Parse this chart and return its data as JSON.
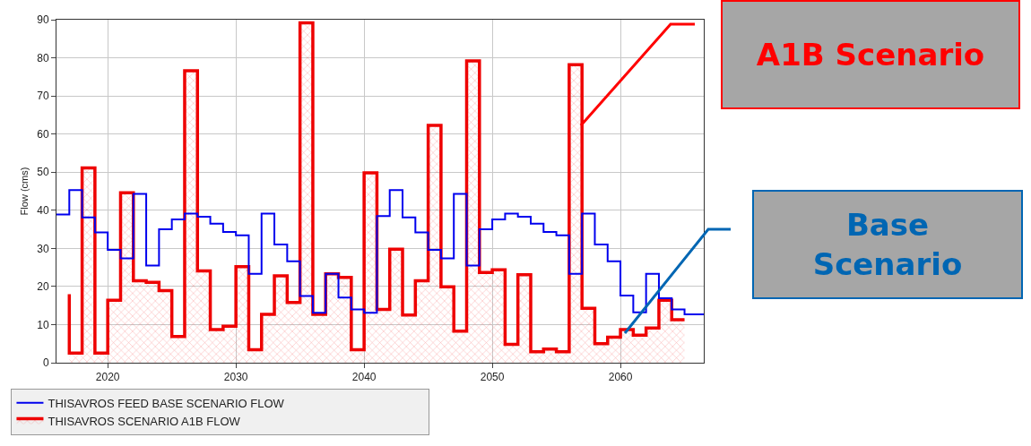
{
  "chart_data": {
    "type": "step",
    "ylabel": "Flow (cms)",
    "xlim": [
      2016,
      2066.5
    ],
    "xticks": [
      2020,
      2030,
      2040,
      2050,
      2060
    ],
    "ylim": [
      0,
      90
    ],
    "yticks": [
      0,
      10,
      20,
      30,
      40,
      50,
      60,
      70,
      80,
      90
    ],
    "grid": true,
    "legend": "bottom",
    "marker": "none",
    "line_style": "solid",
    "series": [
      {
        "name": "THISAVROS FEED BASE SCENARIO FLOW",
        "color": "#0000ee",
        "x": [
          2016,
          2017,
          2018,
          2019,
          2020,
          2021,
          2022,
          2023,
          2024,
          2025,
          2026,
          2027,
          2028,
          2029,
          2030,
          2031,
          2032,
          2033,
          2034,
          2035,
          2036,
          2037,
          2038,
          2039,
          2040,
          2041,
          2042,
          2043,
          2044,
          2045,
          2046,
          2047,
          2048,
          2049,
          2050,
          2051,
          2052,
          2053,
          2054,
          2055,
          2056,
          2057,
          2058,
          2059,
          2060,
          2061,
          2062,
          2063,
          2064,
          2065,
          2066.5
        ],
        "values": [
          38.9,
          45.3,
          38.1,
          34.2,
          29.6,
          27.4,
          44.3,
          25.5,
          35.0,
          37.6,
          39.1,
          38.3,
          36.5,
          34.3,
          33.4,
          23.3,
          39.1,
          31.0,
          26.6,
          17.5,
          13.1,
          23.3,
          17.1,
          14.0,
          13.1,
          38.5,
          45.3,
          38.1,
          34.2,
          29.6,
          27.4,
          44.3,
          25.5,
          35.0,
          37.6,
          39.1,
          38.3,
          36.5,
          34.3,
          33.4,
          23.3,
          39.1,
          31.0,
          26.6,
          17.6,
          13.2,
          23.3,
          16.9,
          14.0,
          12.7,
          12.7
        ]
      },
      {
        "name": "THISAVROS SCENARIO A1B FLOW",
        "color": "#ee0000",
        "type": "area",
        "x": [
          2017,
          2017,
          2018,
          2018,
          2019,
          2019,
          2020,
          2020,
          2021,
          2021,
          2022,
          2022,
          2023,
          2023,
          2024,
          2024,
          2025,
          2025,
          2026,
          2026,
          2027,
          2027,
          2028,
          2028,
          2029,
          2029,
          2030,
          2030,
          2031,
          2031,
          2032,
          2032,
          2033,
          2033,
          2034,
          2034,
          2035,
          2035,
          2036,
          2036,
          2037,
          2037,
          2038,
          2038,
          2039,
          2039,
          2040,
          2040,
          2041,
          2041,
          2042,
          2042,
          2043,
          2043,
          2044,
          2044,
          2045,
          2045,
          2046,
          2046,
          2047,
          2047,
          2048,
          2048,
          2049,
          2049,
          2050,
          2050,
          2051,
          2051,
          2052,
          2052,
          2053,
          2053,
          2054,
          2054,
          2055,
          2055,
          2056,
          2056,
          2057,
          2057,
          2058,
          2058,
          2059,
          2059,
          2060,
          2060,
          2061,
          2061,
          2062,
          2062,
          2063,
          2063,
          2064,
          2064,
          2065
        ],
        "values": [
          18,
          2.5,
          2.5,
          51.1,
          51.1,
          2.5,
          2.5,
          16.4,
          16.4,
          44.6,
          44.6,
          21.5,
          21.5,
          21.1,
          21.1,
          18.9,
          18.9,
          6.9,
          6.9,
          76.6,
          76.6,
          24.1,
          24.1,
          8.7,
          8.7,
          9.6,
          9.6,
          25.2,
          25.2,
          3.4,
          3.4,
          12.7,
          12.7,
          22.8,
          22.8,
          15.8,
          15.8,
          89.2,
          89.2,
          12.7,
          12.7,
          23.3,
          23.3,
          22.4,
          22.4,
          3.4,
          3.4,
          49.8,
          49.8,
          14.0,
          14.0,
          29.8,
          29.8,
          12.5,
          12.5,
          21.5,
          21.5,
          62.3,
          62.3,
          19.9,
          19.9,
          8.3,
          8.3,
          79.2,
          79.2,
          23.7,
          23.7,
          24.4,
          24.4,
          4.8,
          4.8,
          23.1,
          23.1,
          2.9,
          2.9,
          3.6,
          3.6,
          2.9,
          2.9,
          78.2,
          78.2,
          14.3,
          14.3,
          5.0,
          5.0,
          6.7,
          6.7,
          8.7,
          8.7,
          7.2,
          7.2,
          9.1,
          9.1,
          16.4,
          16.4,
          11.3,
          11.3
        ]
      }
    ],
    "annotations": [
      "A1B Scenario",
      "Base Scenario"
    ]
  }
}
